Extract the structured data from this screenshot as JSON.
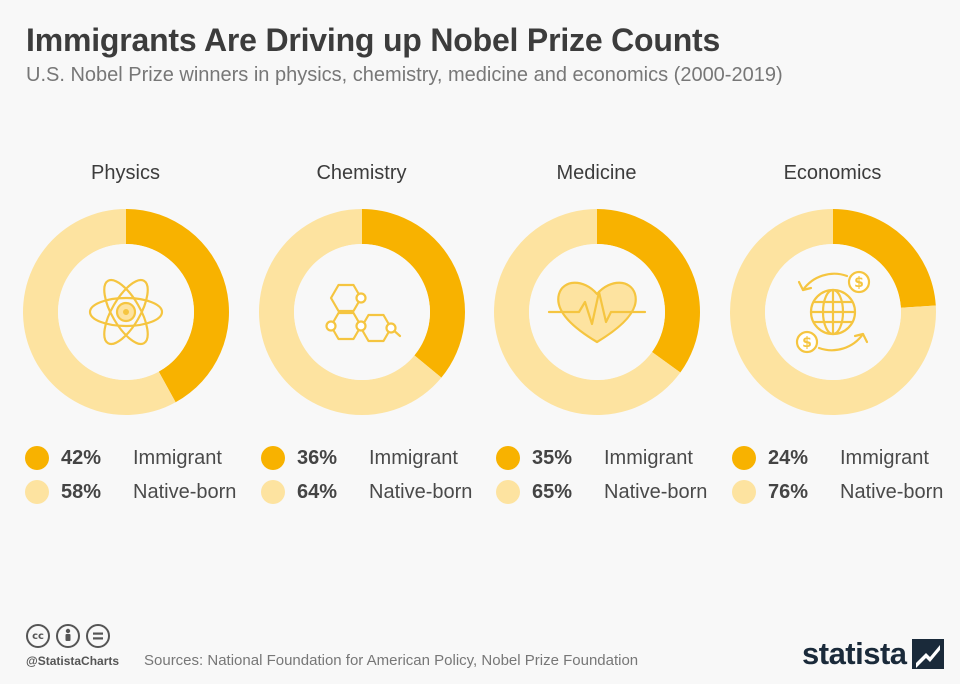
{
  "title": "Immigrants Are Driving up Nobel Prize Counts",
  "subtitle": "U.S. Nobel Prize winners in physics, chemistry, medicine and economics (2000-2019)",
  "colors": {
    "immigrant": "#f8b200",
    "native": "#fde3a0",
    "hole": "#f8f8f8",
    "icon": "#f5c540"
  },
  "chart_data": [
    {
      "type": "pie",
      "title": "Physics",
      "icon": "atom-icon",
      "categories": [
        "Immigrant",
        "Native-born"
      ],
      "values": [
        42,
        58
      ],
      "labels": [
        "42%",
        "58%"
      ]
    },
    {
      "type": "pie",
      "title": "Chemistry",
      "icon": "molecule-icon",
      "categories": [
        "Immigrant",
        "Native-born"
      ],
      "values": [
        36,
        64
      ],
      "labels": [
        "36%",
        "64%"
      ]
    },
    {
      "type": "pie",
      "title": "Medicine",
      "icon": "heart-pulse-icon",
      "categories": [
        "Immigrant",
        "Native-born"
      ],
      "values": [
        35,
        65
      ],
      "labels": [
        "35%",
        "65%"
      ]
    },
    {
      "type": "pie",
      "title": "Economics",
      "icon": "globe-dollar-icon",
      "categories": [
        "Immigrant",
        "Native-born"
      ],
      "values": [
        24,
        76
      ],
      "labels": [
        "24%",
        "76%"
      ]
    }
  ],
  "footer": {
    "handle": "@StatistaCharts",
    "sources": "Sources: National Foundation for American Policy, Nobel Prize Foundation",
    "brand": "statista",
    "license_icons": [
      "cc-icon",
      "by-icon",
      "nd-icon"
    ]
  }
}
